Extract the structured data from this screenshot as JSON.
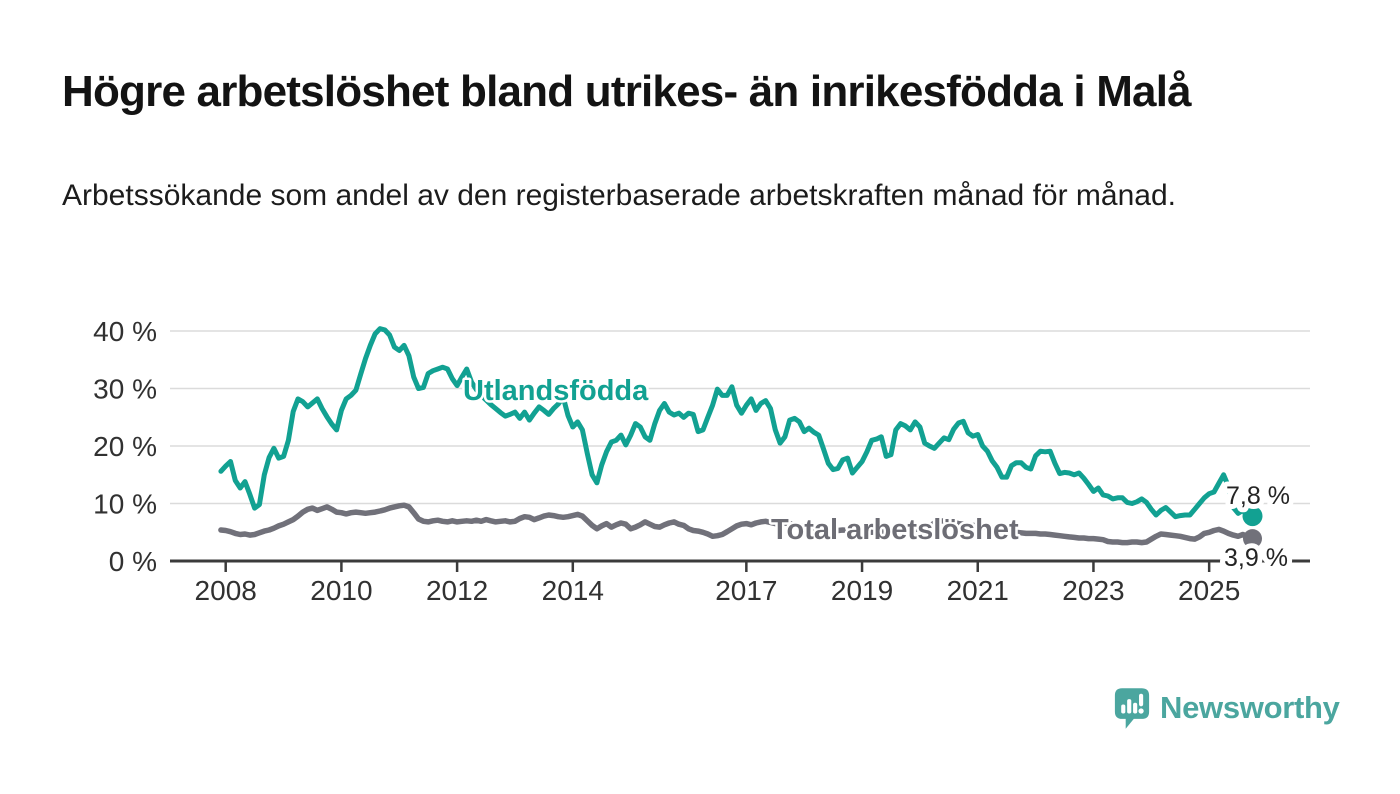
{
  "header": {
    "title": "Högre arbetslöshet bland utrikes- än inrikesfödda i Malå",
    "subtitle": "Arbetssökande som andel av den registerbaserade arbetskraften månad för månad."
  },
  "chart_data": {
    "type": "line",
    "title": "",
    "xlabel": "",
    "ylabel": "",
    "unit": "%",
    "grid": "horizontal",
    "x_interval": "monthly",
    "x_start": 2007.9167,
    "x_end": 2025.75,
    "ylim": [
      0,
      42
    ],
    "yticks": [
      {
        "value": 0,
        "label": "0 %"
      },
      {
        "value": 10,
        "label": "10 %"
      },
      {
        "value": 20,
        "label": "20 %"
      },
      {
        "value": 30,
        "label": "30 %"
      },
      {
        "value": 40,
        "label": "40 %"
      }
    ],
    "xticks": [
      {
        "value": 2008,
        "label": "2008"
      },
      {
        "value": 2010,
        "label": "2010"
      },
      {
        "value": 2012,
        "label": "2012"
      },
      {
        "value": 2014,
        "label": "2014"
      },
      {
        "value": 2017,
        "label": "2017"
      },
      {
        "value": 2019,
        "label": "2019"
      },
      {
        "value": 2021,
        "label": "2021"
      },
      {
        "value": 2023,
        "label": "2023"
      },
      {
        "value": 2025,
        "label": "2025"
      }
    ],
    "series": [
      {
        "name": "Utlandsfödda",
        "color": "#12A192",
        "label_color": "#12A192",
        "end_label": "7,8 %",
        "end_value": 7.8,
        "values": [
          15.6,
          16.5,
          17.3,
          14.0,
          12.7,
          13.8,
          11.6,
          9.2,
          9.8,
          15.0,
          18.0,
          19.6,
          17.9,
          18.2,
          21.0,
          26.0,
          28.2,
          27.7,
          26.8,
          27.5,
          28.2,
          26.5,
          25.1,
          23.8,
          22.8,
          26.2,
          28.2,
          28.8,
          29.7,
          32.5,
          35.2,
          37.5,
          39.5,
          40.4,
          40.2,
          39.3,
          37.2,
          36.6,
          37.5,
          35.7,
          32.0,
          30.0,
          30.2,
          32.6,
          33.1,
          33.4,
          33.7,
          33.4,
          31.7,
          30.5,
          32.0,
          33.4,
          31.1,
          29.8,
          28.8,
          28.0,
          27.2,
          26.5,
          25.8,
          25.2,
          25.5,
          25.9,
          24.8,
          25.9,
          24.5,
          25.7,
          26.8,
          26.2,
          25.5,
          26.5,
          27.3,
          28.5,
          25.3,
          23.3,
          24.2,
          22.8,
          18.7,
          15.0,
          13.6,
          16.7,
          19.0,
          20.7,
          21.0,
          21.9,
          20.2,
          21.9,
          23.9,
          23.3,
          21.6,
          21.0,
          23.9,
          26.2,
          27.4,
          25.9,
          25.4,
          25.7,
          25.0,
          25.7,
          25.5,
          22.5,
          22.8,
          25.0,
          27.1,
          29.9,
          28.8,
          28.8,
          30.3,
          27.1,
          25.7,
          27.1,
          28.2,
          26.2,
          27.4,
          27.9,
          26.5,
          22.8,
          20.5,
          21.6,
          24.5,
          24.8,
          24.2,
          22.5,
          23.1,
          22.4,
          21.9,
          19.5,
          17.0,
          15.9,
          16.1,
          17.6,
          17.9,
          15.3,
          16.3,
          17.3,
          19.0,
          21.0,
          21.2,
          21.6,
          18.2,
          18.5,
          22.8,
          23.9,
          23.5,
          22.8,
          24.2,
          23.3,
          20.5,
          20.0,
          19.6,
          20.5,
          21.4,
          21.1,
          22.9,
          24.0,
          24.3,
          22.3,
          21.7,
          22.0,
          20.0,
          19.1,
          17.4,
          16.3,
          14.6,
          14.6,
          16.6,
          17.1,
          17.1,
          16.3,
          16.0,
          18.3,
          19.1,
          19.0,
          19.1,
          17.0,
          15.2,
          15.4,
          15.3,
          15.0,
          15.3,
          14.4,
          13.3,
          12.1,
          12.7,
          11.5,
          11.3,
          10.8,
          11.0,
          11.0,
          10.2,
          10.0,
          10.3,
          10.8,
          10.2,
          9.0,
          8.0,
          8.8,
          9.3,
          8.5,
          7.7,
          7.9,
          8.0,
          8.0,
          9.0,
          10.0,
          11.0,
          11.7,
          12.0,
          13.5,
          15.0,
          13.0,
          9.3,
          8.3,
          8.8,
          7.7,
          7.8
        ]
      },
      {
        "name": "Total arbetslöshet",
        "color": "#71717A",
        "label_color": "#6D6D75",
        "end_label": "3,9 %",
        "end_value": 3.9,
        "values": [
          5.4,
          5.3,
          5.1,
          4.8,
          4.6,
          4.7,
          4.5,
          4.6,
          4.9,
          5.2,
          5.4,
          5.7,
          6.1,
          6.4,
          6.8,
          7.2,
          7.8,
          8.5,
          9.0,
          9.2,
          8.8,
          9.1,
          9.4,
          9.0,
          8.5,
          8.4,
          8.2,
          8.4,
          8.5,
          8.4,
          8.3,
          8.4,
          8.5,
          8.7,
          8.9,
          9.2,
          9.4,
          9.6,
          9.7,
          9.4,
          8.4,
          7.3,
          6.9,
          6.8,
          7.0,
          7.1,
          6.9,
          6.8,
          7.0,
          6.8,
          6.9,
          7.0,
          6.9,
          7.1,
          6.9,
          7.2,
          7.0,
          6.8,
          6.9,
          7.0,
          6.8,
          6.9,
          7.4,
          7.7,
          7.6,
          7.2,
          7.5,
          7.8,
          8.0,
          7.9,
          7.7,
          7.6,
          7.7,
          7.9,
          8.1,
          7.8,
          7.0,
          6.2,
          5.6,
          6.1,
          6.5,
          5.9,
          6.3,
          6.6,
          6.4,
          5.6,
          5.9,
          6.3,
          6.8,
          6.4,
          6.0,
          5.9,
          6.3,
          6.6,
          6.8,
          6.4,
          6.2,
          5.6,
          5.3,
          5.2,
          5.0,
          4.7,
          4.3,
          4.4,
          4.6,
          5.1,
          5.6,
          6.1,
          6.4,
          6.5,
          6.3,
          6.6,
          6.8,
          6.9,
          6.7,
          6.5,
          6.4,
          6.6,
          6.5,
          6.3,
          6.2,
          6.0,
          5.9,
          5.8,
          5.6,
          5.4,
          5.3,
          5.2,
          5.3,
          5.4,
          5.3,
          5.2,
          5.3,
          5.2,
          5.1,
          5.0,
          5.1,
          5.2,
          5.0,
          4.9,
          5.0,
          5.2,
          5.3,
          5.4,
          5.5,
          5.6,
          5.5,
          6.0,
          6.6,
          6.9,
          7.0,
          6.8,
          6.7,
          6.5,
          6.4,
          6.3,
          6.2,
          6.1,
          6.0,
          5.9,
          5.7,
          5.5,
          5.3,
          5.2,
          5.1,
          5.0,
          4.9,
          4.8,
          4.8,
          4.8,
          4.7,
          4.7,
          4.6,
          4.5,
          4.4,
          4.3,
          4.2,
          4.1,
          4.0,
          4.0,
          3.9,
          3.9,
          3.8,
          3.7,
          3.4,
          3.3,
          3.3,
          3.2,
          3.2,
          3.3,
          3.3,
          3.2,
          3.3,
          3.8,
          4.3,
          4.7,
          4.6,
          4.5,
          4.4,
          4.3,
          4.1,
          3.9,
          3.8,
          4.2,
          4.8,
          5.0,
          5.3,
          5.5,
          5.2,
          4.8,
          4.5,
          4.3,
          4.6,
          4.2,
          3.9
        ]
      }
    ]
  },
  "branding": {
    "logo_text": "Newsworthy",
    "logo_color": "#4BA69F"
  }
}
